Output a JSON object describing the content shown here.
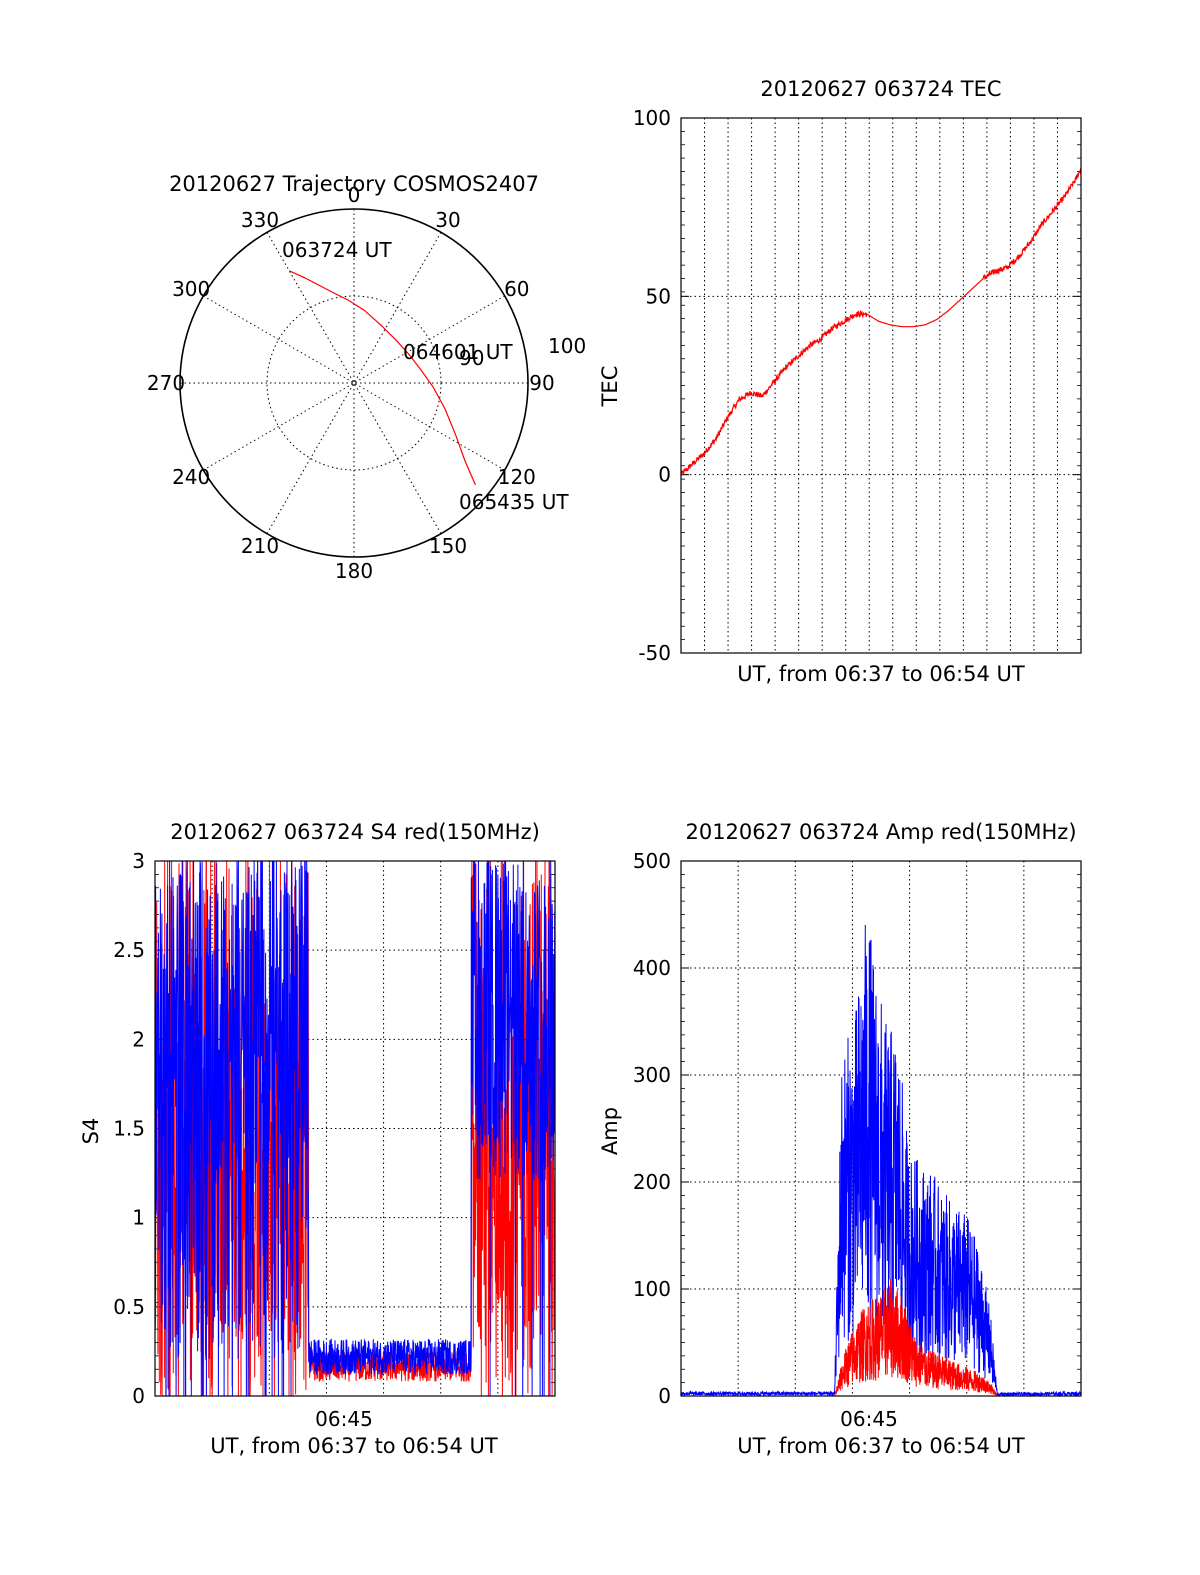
{
  "chart_data": [
    {
      "type": "polar",
      "title": "20120627 Trajectory COSMOS2407",
      "azimuth_labels": [
        "0",
        "30",
        "60",
        "90",
        "120",
        "150",
        "180",
        "210",
        "240",
        "270",
        "300",
        "330"
      ],
      "elevation_labels": [
        "100",
        "90"
      ],
      "trajectory": {
        "color": "#ff0000",
        "start_label": "063724 UT",
        "mid_label": "064601 UT",
        "end_label": "065435 UT",
        "points": [
          [
            330,
            23
          ],
          [
            335,
            30
          ],
          [
            340,
            36
          ],
          [
            347,
            42
          ],
          [
            356,
            47
          ],
          [
            8,
            52
          ],
          [
            25,
            57
          ],
          [
            45,
            59
          ],
          [
            62,
            58
          ],
          [
            78,
            55
          ],
          [
            93,
            49
          ],
          [
            106,
            41
          ],
          [
            117,
            31
          ],
          [
            125,
            20
          ],
          [
            130,
            8
          ]
        ]
      }
    },
    {
      "type": "line",
      "title": "20120627 063724 TEC",
      "xlabel": "UT, from 06:37 to 06:54 UT",
      "ylabel": "TEC",
      "xlim": [
        "06:37:24",
        "06:54:35"
      ],
      "ylim": [
        -50,
        100
      ],
      "yticks": [
        "-50",
        "0",
        "50",
        "100"
      ],
      "grid": true,
      "series": [
        {
          "color": "#ff0000",
          "x_minutes": [
            0,
            0.5,
            1,
            1.5,
            2,
            2.5,
            3,
            3.5,
            4,
            4.5,
            5,
            5.5,
            6,
            6.5,
            7,
            7.5,
            8,
            8.5,
            9,
            9.5,
            10,
            10.5,
            11,
            11.5,
            12,
            12.5,
            13,
            13.5,
            14,
            14.5,
            15,
            15.5,
            16,
            16.5,
            17,
            17.2
          ],
          "values": [
            0,
            3,
            6,
            10,
            16,
            21,
            23,
            22,
            26,
            30,
            33,
            36,
            38,
            41,
            43,
            45,
            45,
            43,
            42,
            41.5,
            41.5,
            42,
            43.5,
            46,
            49,
            52,
            55,
            57,
            58,
            61,
            65,
            70,
            74,
            78,
            83,
            86
          ]
        }
      ]
    },
    {
      "type": "line",
      "title": "20120627 063724 S4 red(150MHz)",
      "xlabel": "UT, from 06:37 to 06:54 UT",
      "ylabel": "S4",
      "xticklabel": "06:45",
      "ylim": [
        0,
        3
      ],
      "yticks": [
        "0",
        "0.5",
        "1",
        "1.5",
        "2",
        "2.5",
        "3"
      ],
      "grid": true,
      "series": [
        {
          "color": "#ff0000",
          "segments": [
            {
              "x_range_minutes": [
                0,
                6.6
              ],
              "level_range": [
                0,
                3
              ]
            },
            {
              "x_range_minutes": [
                6.6,
                13.6
              ],
              "level_range": [
                0.08,
                0.25
              ]
            },
            {
              "x_range_minutes": [
                13.6,
                17.2
              ],
              "level_range": [
                0,
                3
              ]
            }
          ]
        },
        {
          "color": "#0000ff",
          "segments": [
            {
              "x_range_minutes": [
                0,
                6.6
              ],
              "level_range": [
                0.2,
                3
              ]
            },
            {
              "x_range_minutes": [
                6.6,
                13.6
              ],
              "level_range": [
                0.12,
                0.32
              ]
            },
            {
              "x_range_minutes": [
                13.6,
                17.2
              ],
              "level_range": [
                1.2,
                3
              ]
            }
          ]
        }
      ]
    },
    {
      "type": "line",
      "title": "20120627 063724 Amp red(150MHz)",
      "xlabel": "UT, from 06:37 to 06:54 UT",
      "ylabel": "Amp",
      "xticklabel": "06:45",
      "ylim": [
        0,
        500
      ],
      "yticks": [
        "0",
        "100",
        "200",
        "300",
        "400",
        "500"
      ],
      "grid": true,
      "series": [
        {
          "color": "#0000ff",
          "envelope_x_minutes": [
            0,
            6.6,
            6.9,
            7.5,
            8,
            8.3,
            8.8,
            9.3,
            9.8,
            10.3,
            10.8,
            11.3,
            11.8,
            12.3,
            12.8,
            13.3,
            13.6,
            17.2
          ],
          "envelope_max": [
            4,
            4,
            320,
            360,
            460,
            410,
            350,
            340,
            230,
            220,
            210,
            190,
            180,
            170,
            140,
            80,
            3,
            4
          ]
        },
        {
          "color": "#ff0000",
          "envelope_x_minutes": [
            0,
            6.6,
            7,
            7.5,
            8,
            8.5,
            9,
            9.5,
            10,
            10.5,
            11,
            11.5,
            12,
            12.5,
            13,
            13.4,
            13.6
          ],
          "envelope_max": [
            0,
            0,
            40,
            70,
            90,
            95,
            110,
            95,
            60,
            45,
            40,
            35,
            30,
            25,
            20,
            10,
            0
          ]
        }
      ]
    }
  ]
}
